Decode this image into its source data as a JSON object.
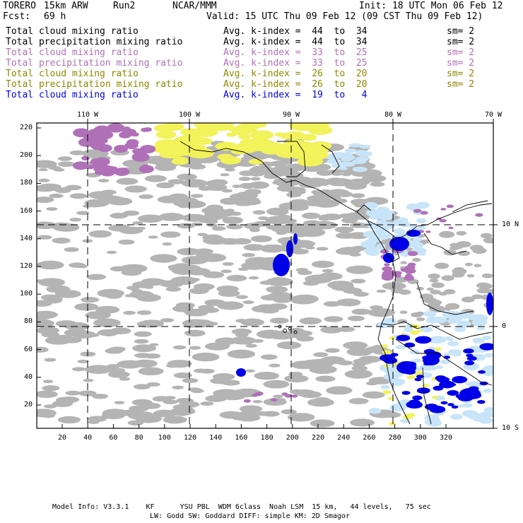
{
  "header": {
    "model": "TORERO",
    "resolution": "15km ARW",
    "run": "Run2",
    "org": "NCAR/MMM",
    "init": "Init: 18 UTC Mon 06 Feb 12",
    "fcst_label": "Fcst:",
    "fcst_value": "69 h",
    "valid": "Valid: 15 UTC Thu 09 Feb 12 (09 CST Thu 09 Feb 12)"
  },
  "legend": [
    {
      "field": "Total cloud mixing ratio",
      "kindex": "Avg. k-index =  44  to  34",
      "sm": "sm= 2",
      "color": "#000000"
    },
    {
      "field": "Total precipitation mixing ratio",
      "kindex": "Avg. k-index =  44  to  34",
      "sm": "sm= 2",
      "color": "#000000"
    },
    {
      "field": "Total cloud mixing ratio",
      "kindex": "Avg. k-index =  33  to  25",
      "sm": "sm= 2",
      "color": "#b070b8"
    },
    {
      "field": "Total precipitation mixing ratio",
      "kindex": "Avg. k-index =  33  to  25",
      "sm": "sm= 2",
      "color": "#b070b8"
    },
    {
      "field": "Total cloud mixing ratio",
      "kindex": "Avg. k-index =  26  to  20",
      "sm": "sm= 2",
      "color": "#8a8a00"
    },
    {
      "field": "Total precipitation mixing ratio",
      "kindex": "Avg. k-index =  26  to  20",
      "sm": "sm= 2",
      "color": "#8a8a00"
    },
    {
      "field": "Total cloud mixing ratio",
      "kindex": "Avg. k-index =  19  to   4",
      "sm": "",
      "color": "#0000e0"
    }
  ],
  "axes": {
    "top_lon": [
      "110 W",
      "100 W",
      "90 W",
      "80 W",
      "70 W"
    ],
    "right_lat": [
      "10 N",
      "0",
      "10 S"
    ],
    "left_y": [
      "220",
      "200",
      "180",
      "160",
      "140",
      "120",
      "100",
      "80",
      "60",
      "40",
      "20"
    ],
    "bottom_x": [
      "20",
      "40",
      "60",
      "80",
      "100",
      "120",
      "140",
      "160",
      "180",
      "200",
      "220",
      "240",
      "260",
      "280",
      "300",
      "320"
    ]
  },
  "footer": {
    "line1": "Model Info: V3.3.1    KF      YSU PBL  WDM 6class  Noah LSM  15 km,   44 levels,   75 sec",
    "line2": "LW: Godd SW: Goddard DIFF: simple KM: 2D Smagor"
  },
  "colors": {
    "gray": "#b4b4b4",
    "purple": "#b070b8",
    "yellow": "#f2f25a",
    "lightblue": "#c8e4f8",
    "blue": "#0000e8"
  }
}
